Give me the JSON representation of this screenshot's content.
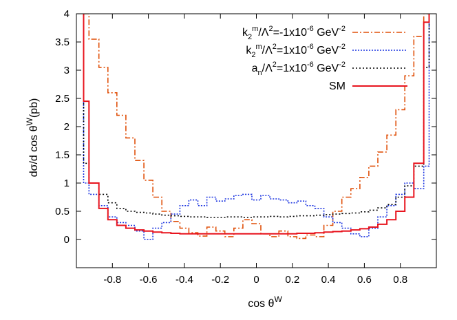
{
  "chart_data": {
    "type": "line",
    "xlabel": "cos θ",
    "xlabel_sup": "W",
    "ylabel": "dσ/d cos θ",
    "ylabel_sup": "W",
    "ylabel_suffix": "(pb)",
    "xlim": [
      -1,
      1
    ],
    "ylim": [
      -0.5,
      4
    ],
    "xticks": [
      -0.8,
      -0.6,
      -0.4,
      -0.2,
      0,
      0.2,
      0.4,
      0.6,
      0.8
    ],
    "yticks": [
      0,
      0.5,
      1,
      1.5,
      2,
      2.5,
      3,
      3.5,
      4
    ],
    "legend_position": "top-right",
    "series": [
      {
        "name": "k2m/Λ2=-1x10-6 GeV-2",
        "legend": {
          "base": "k",
          "sub": "2",
          "sup1": "m",
          "mid": "/Λ",
          "sup2": "2",
          "rest": "=-1x10",
          "sup3": "-6",
          "unit": " GeV",
          "sup4": "-2"
        },
        "color": "#e0500a",
        "dash": "8,3,2,3",
        "x": [
          -0.96,
          -0.9,
          -0.85,
          -0.8,
          -0.75,
          -0.7,
          -0.65,
          -0.6,
          -0.55,
          -0.5,
          -0.45,
          -0.4,
          -0.35,
          -0.3,
          -0.25,
          -0.2,
          -0.15,
          -0.1,
          -0.05,
          0,
          0.05,
          0.1,
          0.15,
          0.2,
          0.25,
          0.3,
          0.35,
          0.4,
          0.45,
          0.5,
          0.55,
          0.6,
          0.65,
          0.7,
          0.75,
          0.8,
          0.85,
          0.9,
          0.96
        ],
        "y": [
          4,
          3.55,
          3.05,
          2.6,
          2.2,
          1.8,
          1.4,
          1.05,
          0.75,
          0.5,
          0.32,
          0.2,
          0.12,
          0.06,
          0.22,
          0.15,
          0.05,
          0.2,
          0.35,
          0.28,
          0.1,
          0.05,
          0.15,
          0.05,
          0.02,
          0.08,
          0.05,
          0.25,
          0.5,
          0.75,
          0.9,
          1.1,
          1.3,
          1.55,
          1.85,
          2.3,
          2.9,
          3.6,
          4
        ]
      },
      {
        "name": "k2m/Λ2=1x10-6 GeV-2",
        "legend": {
          "base": "k",
          "sub": "2",
          "sup1": "m",
          "mid": "/Λ",
          "sup2": "2",
          "rest": "=1x10",
          "sup3": "-6",
          "unit": " GeV",
          "sup4": "-2"
        },
        "color": "#1a33e0",
        "dash": "2,2",
        "x": [
          -0.96,
          -0.9,
          -0.85,
          -0.8,
          -0.75,
          -0.7,
          -0.65,
          -0.6,
          -0.55,
          -0.5,
          -0.45,
          -0.4,
          -0.35,
          -0.3,
          -0.25,
          -0.2,
          -0.15,
          -0.1,
          -0.05,
          0,
          0.05,
          0.1,
          0.15,
          0.2,
          0.25,
          0.3,
          0.35,
          0.4,
          0.45,
          0.5,
          0.55,
          0.6,
          0.65,
          0.7,
          0.75,
          0.8,
          0.85,
          0.9,
          0.96
        ],
        "y": [
          1.0,
          0.8,
          0.6,
          0.4,
          0.3,
          0.25,
          0.15,
          0.0,
          0.2,
          0.3,
          0.45,
          0.6,
          0.7,
          0.6,
          0.75,
          0.68,
          0.72,
          0.78,
          0.8,
          0.7,
          0.78,
          0.72,
          0.7,
          0.65,
          0.68,
          0.6,
          0.55,
          0.4,
          0.3,
          0.2,
          0.1,
          0.05,
          0.2,
          0.4,
          0.6,
          0.8,
          1.0,
          0.9,
          1.3
        ]
      },
      {
        "name": "an/Λ2=1x10-6 GeV-2",
        "legend": {
          "base": "a",
          "sub": "n",
          "sup1": "",
          "mid": "/Λ",
          "sup2": "2",
          "rest": "=1x10",
          "sup3": "-6",
          "unit": " GeV",
          "sup4": "-2"
        },
        "color": "#000000",
        "dash": "2,3",
        "x": [
          -0.96,
          -0.9,
          -0.85,
          -0.8,
          -0.75,
          -0.7,
          -0.65,
          -0.6,
          -0.55,
          -0.5,
          -0.45,
          -0.4,
          -0.35,
          -0.3,
          -0.25,
          -0.2,
          -0.15,
          -0.1,
          -0.05,
          0,
          0.05,
          0.1,
          0.15,
          0.2,
          0.25,
          0.3,
          0.35,
          0.4,
          0.45,
          0.5,
          0.55,
          0.6,
          0.65,
          0.7,
          0.75,
          0.8,
          0.85,
          0.9,
          0.96
        ],
        "y": [
          1.35,
          1.0,
          0.8,
          0.65,
          0.55,
          0.5,
          0.48,
          0.47,
          0.45,
          0.43,
          0.42,
          0.41,
          0.4,
          0.4,
          0.39,
          0.39,
          0.4,
          0.4,
          0.39,
          0.4,
          0.4,
          0.41,
          0.4,
          0.41,
          0.42,
          0.42,
          0.43,
          0.44,
          0.45,
          0.46,
          0.47,
          0.49,
          0.52,
          0.56,
          0.62,
          0.75,
          0.95,
          1.3,
          3.05
        ]
      },
      {
        "name": "SM",
        "legend": {
          "base": "SM",
          "sub": "",
          "sup1": "",
          "mid": "",
          "sup2": "",
          "rest": "",
          "sup3": "",
          "unit": "",
          "sup4": ""
        },
        "color": "#e8141e",
        "dash": "",
        "x": [
          -0.96,
          -0.9,
          -0.85,
          -0.8,
          -0.75,
          -0.7,
          -0.65,
          -0.6,
          -0.55,
          -0.5,
          -0.45,
          -0.4,
          -0.35,
          -0.3,
          -0.25,
          -0.2,
          -0.15,
          -0.1,
          -0.05,
          0,
          0.05,
          0.1,
          0.15,
          0.2,
          0.25,
          0.3,
          0.35,
          0.4,
          0.45,
          0.5,
          0.55,
          0.6,
          0.65,
          0.7,
          0.75,
          0.8,
          0.85,
          0.9,
          0.96
        ],
        "y": [
          2.45,
          1.0,
          0.55,
          0.35,
          0.25,
          0.2,
          0.17,
          0.15,
          0.13,
          0.12,
          0.11,
          0.1,
          0.1,
          0.1,
          0.1,
          0.1,
          0.1,
          0.1,
          0.1,
          0.1,
          0.1,
          0.1,
          0.1,
          0.1,
          0.11,
          0.11,
          0.12,
          0.13,
          0.14,
          0.15,
          0.17,
          0.19,
          0.22,
          0.27,
          0.35,
          0.5,
          0.75,
          1.35,
          3.85
        ]
      }
    ]
  }
}
